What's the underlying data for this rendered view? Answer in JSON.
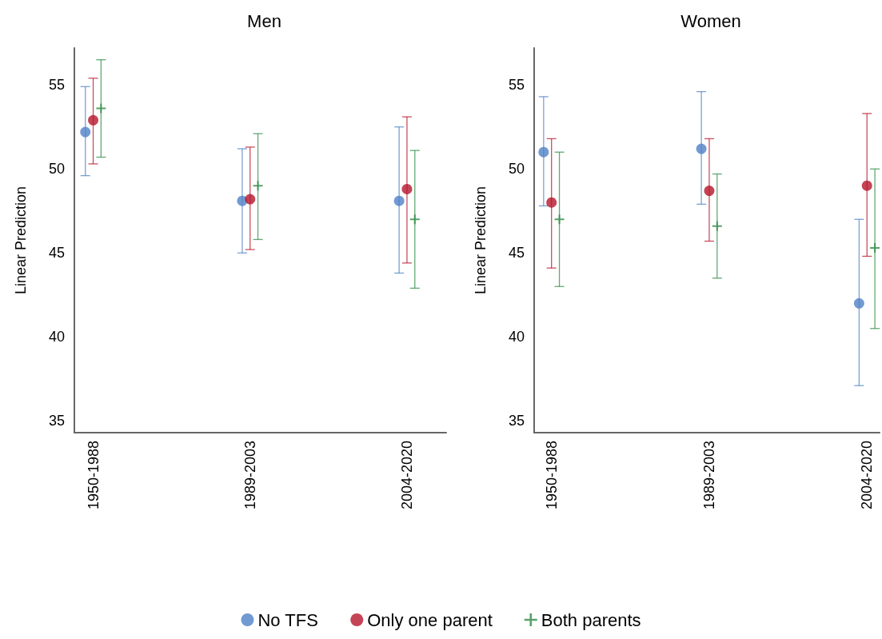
{
  "chart_data": [
    {
      "type": "scatter",
      "title": "Men",
      "ylabel": "Linear Prediction",
      "categories": [
        "1950-1988",
        "1989-2003",
        "2004-2020"
      ],
      "ylim": [
        34.3,
        57.2
      ],
      "yticks": [
        35,
        40,
        45,
        50,
        55
      ],
      "grid": false,
      "legend": "bottom",
      "series": [
        {
          "name": "No TFS",
          "color": "#4f81c7",
          "marker": "circle",
          "values": [
            52.2,
            48.1,
            48.1
          ],
          "errors": [
            [
              49.6,
              54.9
            ],
            [
              45.0,
              51.2
            ],
            [
              43.8,
              52.5
            ]
          ]
        },
        {
          "name": "Only one parent",
          "color": "#b5152b",
          "marker": "circle",
          "values": [
            52.9,
            48.2,
            48.8
          ],
          "errors": [
            [
              50.3,
              55.4
            ],
            [
              45.2,
              51.3
            ],
            [
              44.4,
              53.1
            ]
          ]
        },
        {
          "name": "Both parents",
          "color": "#2e8b46",
          "marker": "cross",
          "values": [
            53.6,
            49.0,
            47.0
          ],
          "errors": [
            [
              50.7,
              56.5
            ],
            [
              45.8,
              52.1
            ],
            [
              42.9,
              51.1
            ]
          ]
        }
      ]
    },
    {
      "type": "scatter",
      "title": "Women",
      "ylabel": "Linear Prediction",
      "categories": [
        "1950-1988",
        "1989-2003",
        "2004-2020"
      ],
      "ylim": [
        34.3,
        57.2
      ],
      "yticks": [
        35,
        40,
        45,
        50,
        55
      ],
      "grid": false,
      "series": [
        {
          "name": "No TFS",
          "color": "#4f81c7",
          "marker": "circle",
          "values": [
            51.0,
            51.2,
            42.0
          ],
          "errors": [
            [
              47.8,
              54.3
            ],
            [
              47.9,
              54.6
            ],
            [
              37.1,
              47.0
            ]
          ]
        },
        {
          "name": "Only one parent",
          "color": "#b5152b",
          "marker": "circle",
          "values": [
            48.0,
            48.7,
            49.0
          ],
          "errors": [
            [
              44.1,
              51.8
            ],
            [
              45.7,
              51.8
            ],
            [
              44.8,
              53.3
            ]
          ]
        },
        {
          "name": "Both parents",
          "color": "#2e8b46",
          "marker": "cross",
          "values": [
            47.0,
            46.6,
            45.3
          ],
          "errors": [
            [
              43.0,
              51.0
            ],
            [
              43.5,
              49.7
            ],
            [
              40.5,
              50.0
            ]
          ]
        }
      ]
    }
  ]
}
